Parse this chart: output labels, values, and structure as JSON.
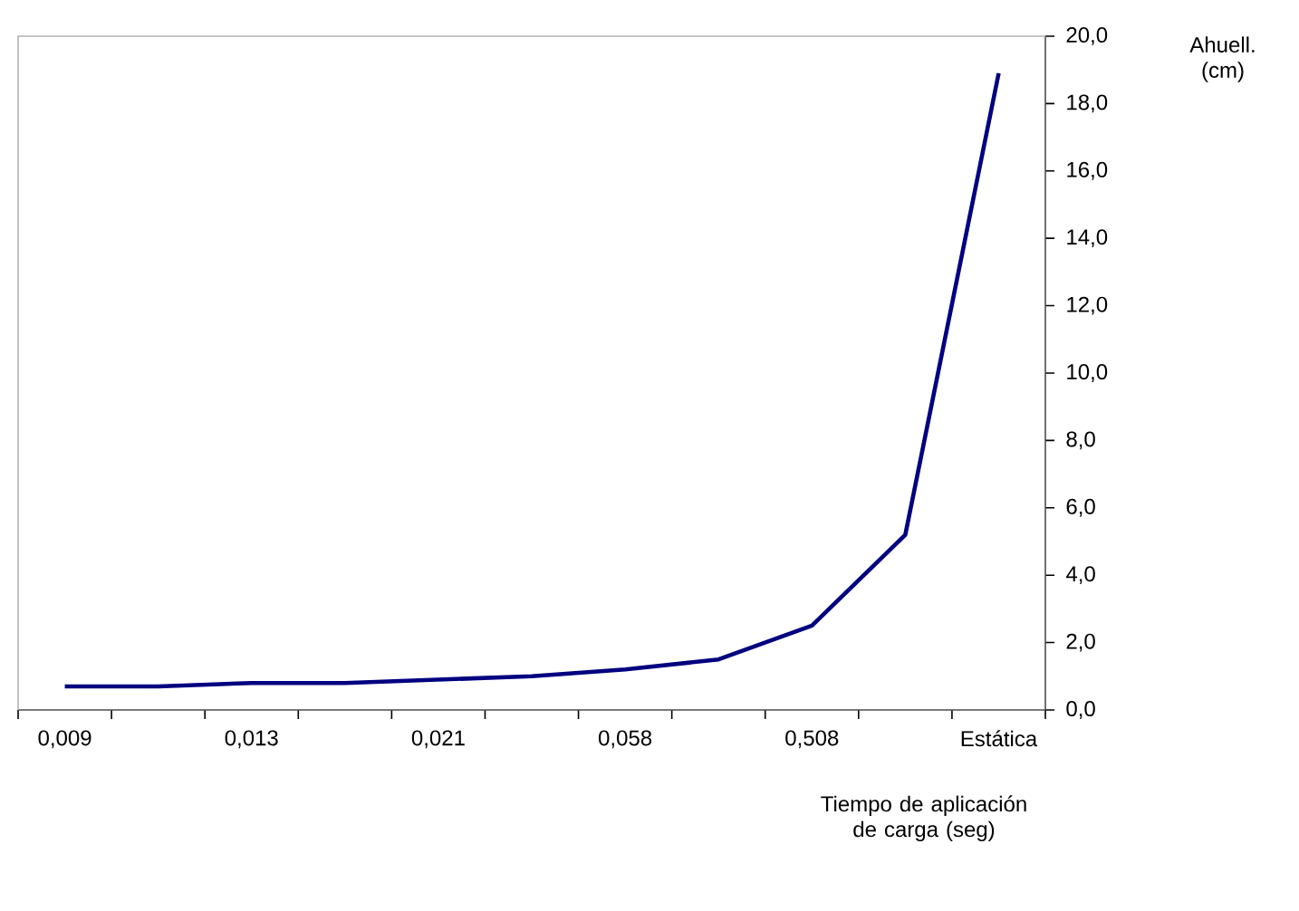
{
  "chart_data": {
    "type": "line",
    "xlabel": "Tiempo de aplicación de carga (seg)",
    "ylabel": "Ahuell. (cm)",
    "categories": [
      "0,009",
      null,
      "0,013",
      null,
      "0,021",
      null,
      "0,058",
      null,
      "0,508",
      null,
      "Estática"
    ],
    "series": [
      {
        "color": "#000080",
        "values": [
          0.7,
          0.7,
          0.8,
          0.8,
          0.9,
          1.0,
          1.2,
          1.5,
          2.5,
          5.2,
          18.9
        ]
      }
    ],
    "ylim": [
      0,
      20
    ],
    "yticks": [
      {
        "value": 0,
        "label": "0,0"
      },
      {
        "value": 2,
        "label": "2,0"
      },
      {
        "value": 4,
        "label": "4,0"
      },
      {
        "value": 6,
        "label": "6,0"
      },
      {
        "value": 8,
        "label": "8,0"
      },
      {
        "value": 10,
        "label": "10,0"
      },
      {
        "value": 12,
        "label": "12,0"
      },
      {
        "value": 14,
        "label": "14,0"
      },
      {
        "value": 16,
        "label": "16,0"
      },
      {
        "value": 18,
        "label": "18,0"
      },
      {
        "value": 20,
        "label": "20,0"
      }
    ],
    "grid": false,
    "marker": "none",
    "line_style": "solid"
  }
}
